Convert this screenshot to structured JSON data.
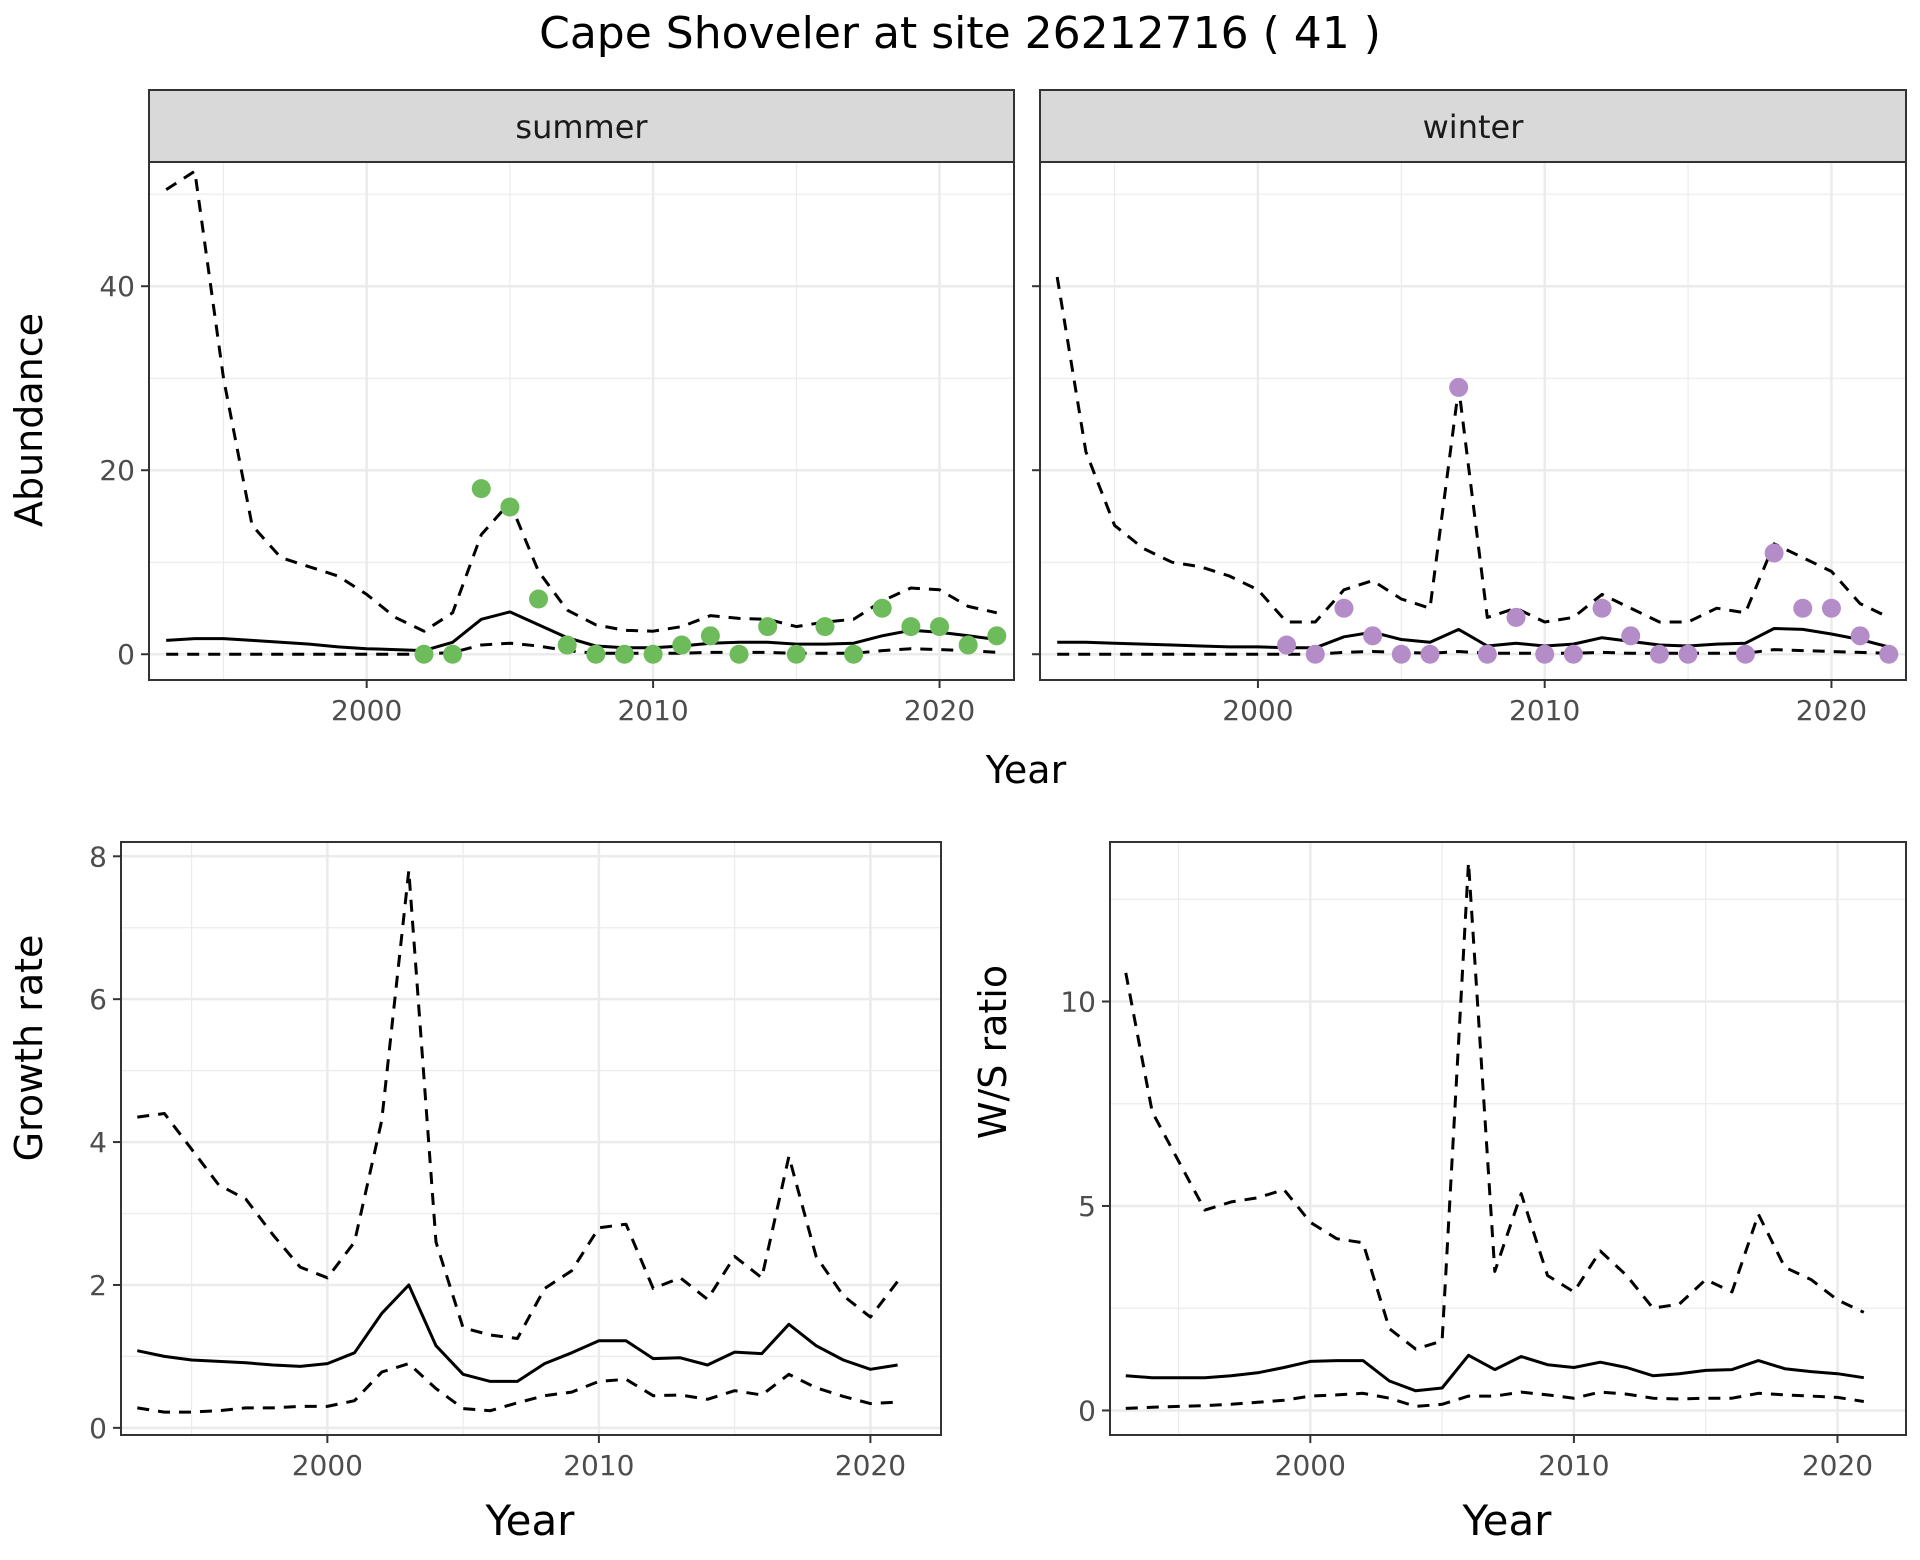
{
  "title": "Cape Shoveler at site 26212716 ( 41 )",
  "colors": {
    "summer_points": "#6DBB5A",
    "winter_points": "#B48CC8",
    "line": "#000000",
    "grid": "#EBEBEB",
    "strip_fill": "#D9D9D9"
  },
  "chart_data": [
    {
      "id": "summer",
      "type": "line",
      "strip_label": "summer",
      "xlabel": "Year",
      "ylabel": "Abundance",
      "xlim": [
        1992.4,
        2022.6
      ],
      "ylim": [
        -2.8,
        53.5
      ],
      "xticks": [
        2000,
        2010,
        2020
      ],
      "yticks": [
        0,
        20,
        40
      ],
      "grid": true,
      "series": [
        {
          "style": "dashed",
          "x": [
            1993,
            1994,
            1995,
            1996,
            1997,
            1998,
            1999,
            2000,
            2001,
            2002,
            2003,
            2004,
            2005,
            2006,
            2007,
            2008,
            2009,
            2010,
            2011,
            2012,
            2013,
            2014,
            2015,
            2016,
            2017,
            2018,
            2019,
            2020,
            2021,
            2022
          ],
          "y": [
            50.5,
            52.5,
            30,
            14,
            10.5,
            9.5,
            8.5,
            6.5,
            4,
            2.5,
            4.5,
            13,
            16.5,
            9,
            4.8,
            3.2,
            2.6,
            2.5,
            3,
            4.2,
            3.9,
            3.8,
            3,
            3.5,
            3.8,
            5.8,
            7.2,
            7,
            5.2,
            4.5
          ]
        },
        {
          "style": "solid",
          "x": [
            1993,
            1994,
            1995,
            1996,
            1997,
            1998,
            1999,
            2000,
            2001,
            2002,
            2003,
            2004,
            2005,
            2006,
            2007,
            2008,
            2009,
            2010,
            2011,
            2012,
            2013,
            2014,
            2015,
            2016,
            2017,
            2018,
            2019,
            2020,
            2021,
            2022
          ],
          "y": [
            1.5,
            1.7,
            1.7,
            1.5,
            1.3,
            1.1,
            0.8,
            0.6,
            0.5,
            0.4,
            1.3,
            3.8,
            4.6,
            3.2,
            1.8,
            0.9,
            0.7,
            0.7,
            0.9,
            1.2,
            1.3,
            1.3,
            1.1,
            1.1,
            1.2,
            2,
            2.6,
            2.4,
            2,
            1.6
          ]
        },
        {
          "style": "dashed",
          "x": [
            1993,
            1994,
            1995,
            1996,
            1997,
            1998,
            1999,
            2000,
            2001,
            2002,
            2003,
            2004,
            2005,
            2006,
            2007,
            2008,
            2009,
            2010,
            2011,
            2012,
            2013,
            2014,
            2015,
            2016,
            2017,
            2018,
            2019,
            2020,
            2021,
            2022
          ],
          "y": [
            0,
            0,
            0,
            0,
            0,
            0,
            0,
            0,
            0,
            0,
            0.2,
            1,
            1.2,
            0.9,
            0.4,
            0.1,
            0.1,
            0.1,
            0.1,
            0.2,
            0.2,
            0.2,
            0.1,
            0.1,
            0.1,
            0.4,
            0.6,
            0.5,
            0.4,
            0.2
          ]
        }
      ],
      "points": {
        "x": [
          2002,
          2003,
          2004,
          2005,
          2006,
          2007,
          2008,
          2009,
          2010,
          2011,
          2012,
          2013,
          2014,
          2015,
          2016,
          2017,
          2018,
          2019,
          2020,
          2021,
          2022
        ],
        "y": [
          0,
          0,
          18,
          16,
          6,
          1,
          0,
          0,
          0,
          1,
          2,
          0,
          3,
          0,
          3,
          0,
          5,
          3,
          3,
          1,
          2
        ]
      }
    },
    {
      "id": "winter",
      "type": "line",
      "strip_label": "winter",
      "xlabel": "Year",
      "ylabel": "",
      "xlim": [
        1992.4,
        2022.6
      ],
      "ylim": [
        -2.8,
        53.5
      ],
      "xticks": [
        2000,
        2010,
        2020
      ],
      "yticks": [
        0,
        20,
        40
      ],
      "grid": true,
      "series": [
        {
          "style": "dashed",
          "x": [
            1993,
            1994,
            1995,
            1996,
            1997,
            1998,
            1999,
            2000,
            2001,
            2002,
            2003,
            2004,
            2005,
            2006,
            2007,
            2008,
            2009,
            2010,
            2011,
            2012,
            2013,
            2014,
            2015,
            2016,
            2017,
            2018,
            2019,
            2020,
            2021,
            2022
          ],
          "y": [
            41,
            22,
            14,
            11.5,
            10,
            9.5,
            8.5,
            7,
            3.5,
            3.5,
            7,
            8,
            6,
            5,
            29,
            4,
            5,
            3.5,
            4,
            6.5,
            5,
            3.5,
            3.5,
            5,
            4.5,
            12,
            10.5,
            9,
            5.5,
            4
          ]
        },
        {
          "style": "solid",
          "x": [
            1993,
            1994,
            1995,
            1996,
            1997,
            1998,
            1999,
            2000,
            2001,
            2002,
            2003,
            2004,
            2005,
            2006,
            2007,
            2008,
            2009,
            2010,
            2011,
            2012,
            2013,
            2014,
            2015,
            2016,
            2017,
            2018,
            2019,
            2020,
            2021,
            2022
          ],
          "y": [
            1.3,
            1.3,
            1.2,
            1.1,
            1,
            0.9,
            0.8,
            0.8,
            0.7,
            0.7,
            1.9,
            2.4,
            1.6,
            1.3,
            2.7,
            0.9,
            1.2,
            0.9,
            1.1,
            1.8,
            1.4,
            1,
            0.9,
            1.1,
            1.2,
            2.8,
            2.7,
            2.2,
            1.6,
            0.8
          ]
        },
        {
          "style": "dashed",
          "x": [
            1993,
            1994,
            1995,
            1996,
            1997,
            1998,
            1999,
            2000,
            2001,
            2002,
            2003,
            2004,
            2005,
            2006,
            2007,
            2008,
            2009,
            2010,
            2011,
            2012,
            2013,
            2014,
            2015,
            2016,
            2017,
            2018,
            2019,
            2020,
            2021,
            2022
          ],
          "y": [
            0,
            0,
            0,
            0,
            0,
            0,
            0,
            0,
            0,
            0,
            0.2,
            0.3,
            0.2,
            0.1,
            0.3,
            0.1,
            0.1,
            0.1,
            0.1,
            0.2,
            0.1,
            0.1,
            0.1,
            0.1,
            0.1,
            0.5,
            0.4,
            0.3,
            0.2,
            0.1
          ]
        }
      ],
      "points": {
        "x": [
          2001,
          2002,
          2003,
          2004,
          2005,
          2006,
          2007,
          2008,
          2009,
          2010,
          2011,
          2012,
          2013,
          2014,
          2015,
          2017,
          2018,
          2019,
          2020,
          2021,
          2022
        ],
        "y": [
          1,
          0,
          5,
          2,
          0,
          0,
          29,
          0,
          4,
          0,
          0,
          5,
          2,
          0,
          0,
          0,
          11,
          5,
          5,
          2,
          0
        ]
      }
    },
    {
      "id": "growth",
      "type": "line",
      "xlabel": "Year",
      "ylabel": "Growth rate",
      "xlim": [
        1992.4,
        2022.6
      ],
      "ylim": [
        -0.1,
        8.2
      ],
      "xticks": [
        2000,
        2010,
        2020
      ],
      "yticks": [
        0,
        2,
        4,
        6,
        8
      ],
      "grid": true,
      "series": [
        {
          "style": "dashed",
          "x": [
            1993,
            1994,
            1995,
            1996,
            1997,
            1998,
            1999,
            2000,
            2001,
            2002,
            2003,
            2004,
            2005,
            2006,
            2007,
            2008,
            2009,
            2010,
            2011,
            2012,
            2013,
            2014,
            2015,
            2016,
            2017,
            2018,
            2019,
            2020,
            2021
          ],
          "y": [
            4.35,
            4.4,
            3.9,
            3.4,
            3.2,
            2.7,
            2.25,
            2.1,
            2.6,
            4.3,
            7.8,
            2.6,
            1.4,
            1.3,
            1.25,
            1.95,
            2.2,
            2.8,
            2.85,
            1.95,
            2.1,
            1.8,
            2.4,
            2.1,
            3.8,
            2.4,
            1.85,
            1.55,
            2.05
          ]
        },
        {
          "style": "solid",
          "x": [
            1993,
            1994,
            1995,
            1996,
            1997,
            1998,
            1999,
            2000,
            2001,
            2002,
            2003,
            2004,
            2005,
            2006,
            2007,
            2008,
            2009,
            2010,
            2011,
            2012,
            2013,
            2014,
            2015,
            2016,
            2017,
            2018,
            2019,
            2020,
            2021
          ],
          "y": [
            1.08,
            1.0,
            0.95,
            0.93,
            0.91,
            0.88,
            0.86,
            0.9,
            1.05,
            1.6,
            2.0,
            1.15,
            0.75,
            0.65,
            0.65,
            0.9,
            1.05,
            1.22,
            1.22,
            0.97,
            0.98,
            0.88,
            1.06,
            1.04,
            1.45,
            1.15,
            0.95,
            0.82,
            0.88
          ]
        },
        {
          "style": "dashed",
          "x": [
            1993,
            1994,
            1995,
            1996,
            1997,
            1998,
            1999,
            2000,
            2001,
            2002,
            2003,
            2004,
            2005,
            2006,
            2007,
            2008,
            2009,
            2010,
            2011,
            2012,
            2013,
            2014,
            2015,
            2016,
            2017,
            2018,
            2019,
            2020,
            2021
          ],
          "y": [
            0.28,
            0.22,
            0.22,
            0.24,
            0.28,
            0.28,
            0.3,
            0.3,
            0.38,
            0.78,
            0.9,
            0.55,
            0.27,
            0.24,
            0.35,
            0.45,
            0.5,
            0.65,
            0.68,
            0.45,
            0.46,
            0.4,
            0.52,
            0.46,
            0.75,
            0.56,
            0.44,
            0.34,
            0.36
          ]
        }
      ]
    },
    {
      "id": "ws_ratio",
      "type": "line",
      "xlabel": "Year",
      "ylabel": "W/S ratio",
      "xlim": [
        1992.4,
        2022.6
      ],
      "ylim": [
        -0.6,
        13.9
      ],
      "xticks": [
        2000,
        2010,
        2020
      ],
      "yticks": [
        0,
        5,
        10
      ],
      "grid": true,
      "series": [
        {
          "style": "dashed",
          "x": [
            1993,
            1994,
            1995,
            1996,
            1997,
            1998,
            1999,
            2000,
            2001,
            2002,
            2003,
            2004,
            2005,
            2006,
            2007,
            2008,
            2009,
            2010,
            2011,
            2012,
            2013,
            2014,
            2015,
            2016,
            2017,
            2018,
            2019,
            2020,
            2021
          ],
          "y": [
            10.7,
            7.3,
            6.1,
            4.9,
            5.1,
            5.2,
            5.4,
            4.6,
            4.2,
            4.1,
            2.0,
            1.5,
            1.7,
            13.4,
            3.4,
            5.3,
            3.3,
            2.9,
            3.9,
            3.3,
            2.5,
            2.6,
            3.2,
            2.9,
            4.8,
            3.5,
            3.2,
            2.7,
            2.4
          ]
        },
        {
          "style": "solid",
          "x": [
            1993,
            1994,
            1995,
            1996,
            1997,
            1998,
            1999,
            2000,
            2001,
            2002,
            2003,
            2004,
            2005,
            2006,
            2007,
            2008,
            2009,
            2010,
            2011,
            2012,
            2013,
            2014,
            2015,
            2016,
            2017,
            2018,
            2019,
            2020,
            2021
          ],
          "y": [
            0.85,
            0.8,
            0.8,
            0.8,
            0.85,
            0.92,
            1.05,
            1.2,
            1.22,
            1.22,
            0.72,
            0.48,
            0.55,
            1.35,
            1.0,
            1.32,
            1.12,
            1.05,
            1.18,
            1.05,
            0.85,
            0.9,
            0.98,
            1.0,
            1.22,
            1.02,
            0.95,
            0.9,
            0.8
          ]
        },
        {
          "style": "dashed",
          "x": [
            1993,
            1994,
            1995,
            1996,
            1997,
            1998,
            1999,
            2000,
            2001,
            2002,
            2003,
            2004,
            2005,
            2006,
            2007,
            2008,
            2009,
            2010,
            2011,
            2012,
            2013,
            2014,
            2015,
            2016,
            2017,
            2018,
            2019,
            2020,
            2021
          ],
          "y": [
            0.05,
            0.08,
            0.1,
            0.12,
            0.15,
            0.2,
            0.25,
            0.35,
            0.38,
            0.42,
            0.3,
            0.1,
            0.15,
            0.35,
            0.35,
            0.45,
            0.38,
            0.3,
            0.45,
            0.4,
            0.3,
            0.28,
            0.3,
            0.3,
            0.42,
            0.38,
            0.35,
            0.32,
            0.22
          ]
        }
      ]
    }
  ]
}
